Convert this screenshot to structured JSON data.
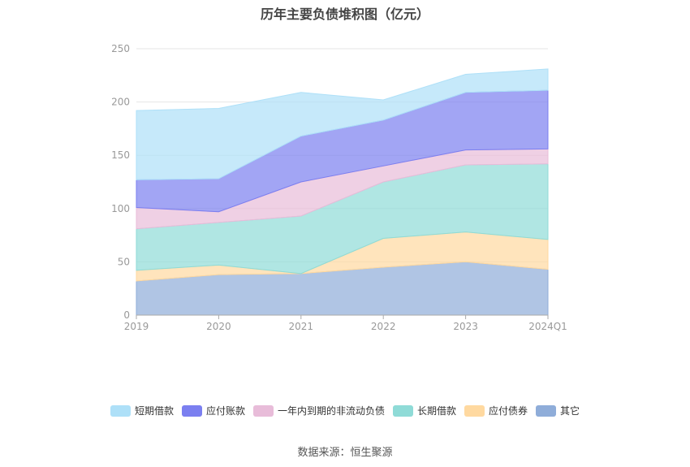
{
  "title": "历年主要负债堆积图（亿元）",
  "source": "数据来源：恒生聚源",
  "chart_data": {
    "type": "area",
    "stacked": true,
    "categories": [
      "2019",
      "2020",
      "2021",
      "2022",
      "2023",
      "2024Q1"
    ],
    "ylim": [
      0,
      250
    ],
    "yticks": [
      0,
      50,
      100,
      150,
      200,
      250
    ],
    "grid": true,
    "legend_position": "bottom",
    "series": [
      {
        "name": "其它",
        "values": [
          32,
          38,
          39,
          45,
          50,
          43
        ],
        "color": "#8fadd9"
      },
      {
        "name": "应付债券",
        "values": [
          10,
          9,
          0,
          27,
          28,
          28
        ],
        "color": "#ffd9a0"
      },
      {
        "name": "长期借款",
        "values": [
          39,
          40,
          54,
          53,
          63,
          71
        ],
        "color": "#8fdbd7"
      },
      {
        "name": "一年内到期的非流动负债",
        "values": [
          20,
          10,
          32,
          15,
          14,
          14
        ],
        "color": "#e8bcd9"
      },
      {
        "name": "应付账款",
        "values": [
          26,
          31,
          43,
          43,
          54,
          55
        ],
        "color": "#7b7ff0"
      },
      {
        "name": "短期借款",
        "values": [
          65,
          66,
          41,
          19,
          17,
          20
        ],
        "color": "#aee0f8"
      }
    ]
  }
}
